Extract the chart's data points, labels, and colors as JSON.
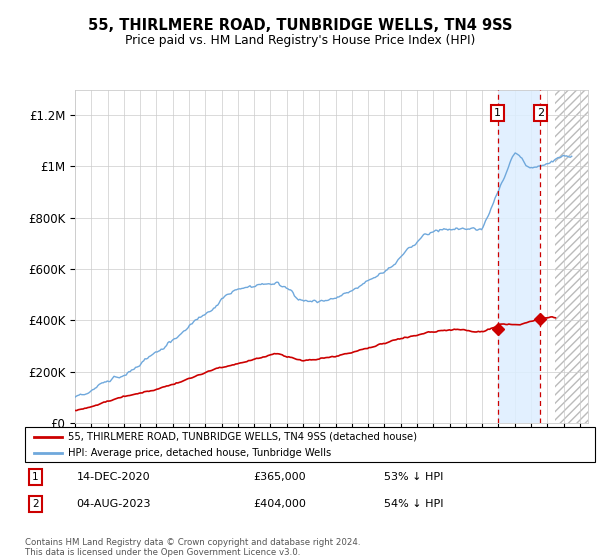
{
  "title": "55, THIRLMERE ROAD, TUNBRIDGE WELLS, TN4 9SS",
  "subtitle": "Price paid vs. HM Land Registry's House Price Index (HPI)",
  "ylim": [
    0,
    1300000
  ],
  "yticks": [
    0,
    200000,
    400000,
    600000,
    800000,
    1000000,
    1200000
  ],
  "ytick_labels": [
    "£0",
    "£200K",
    "£400K",
    "£600K",
    "£800K",
    "£1M",
    "£1.2M"
  ],
  "xlim_start": 1995.0,
  "xlim_end": 2026.5,
  "hpi_color": "#6fa8dc",
  "price_color": "#cc0000",
  "transaction1_date": 2020.95,
  "transaction1_price": 365000,
  "transaction1_label": "1",
  "transaction2_date": 2023.58,
  "transaction2_price": 404000,
  "transaction2_label": "2",
  "legend_property": "55, THIRLMERE ROAD, TUNBRIDGE WELLS, TN4 9SS (detached house)",
  "legend_hpi": "HPI: Average price, detached house, Tunbridge Wells",
  "note1_num": "1",
  "note1_date": "14-DEC-2020",
  "note1_price": "£365,000",
  "note1_pct": "53% ↓ HPI",
  "note2_num": "2",
  "note2_date": "04-AUG-2023",
  "note2_price": "£404,000",
  "note2_pct": "54% ↓ HPI",
  "footer": "Contains HM Land Registry data © Crown copyright and database right 2024.\nThis data is licensed under the Open Government Licence v3.0.",
  "background_color": "#ffffff",
  "grid_color": "#cccccc"
}
